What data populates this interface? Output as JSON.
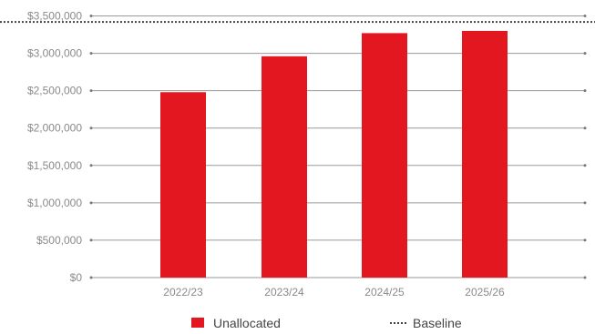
{
  "chart_data": {
    "type": "bar",
    "categories": [
      "2022/23",
      "2023/24",
      "2024/25",
      "2025/26"
    ],
    "series": [
      {
        "name": "Unallocated",
        "values": [
          2480000,
          2960000,
          3270000,
          3300000
        ],
        "color": "#e2171f"
      }
    ],
    "baseline": {
      "name": "Baseline",
      "value": 3420000,
      "color": "#444444",
      "style": "dotted"
    },
    "y_ticks": [
      "$0",
      "$500,000",
      "$1,000,000",
      "$1,500,000",
      "$2,000,000",
      "$2,500,000",
      "$3,000,000",
      "$3,500,000"
    ],
    "ylim": [
      0,
      3500000
    ],
    "grid": true,
    "legend_position": "bottom",
    "title": "",
    "xlabel": "",
    "ylabel": ""
  }
}
